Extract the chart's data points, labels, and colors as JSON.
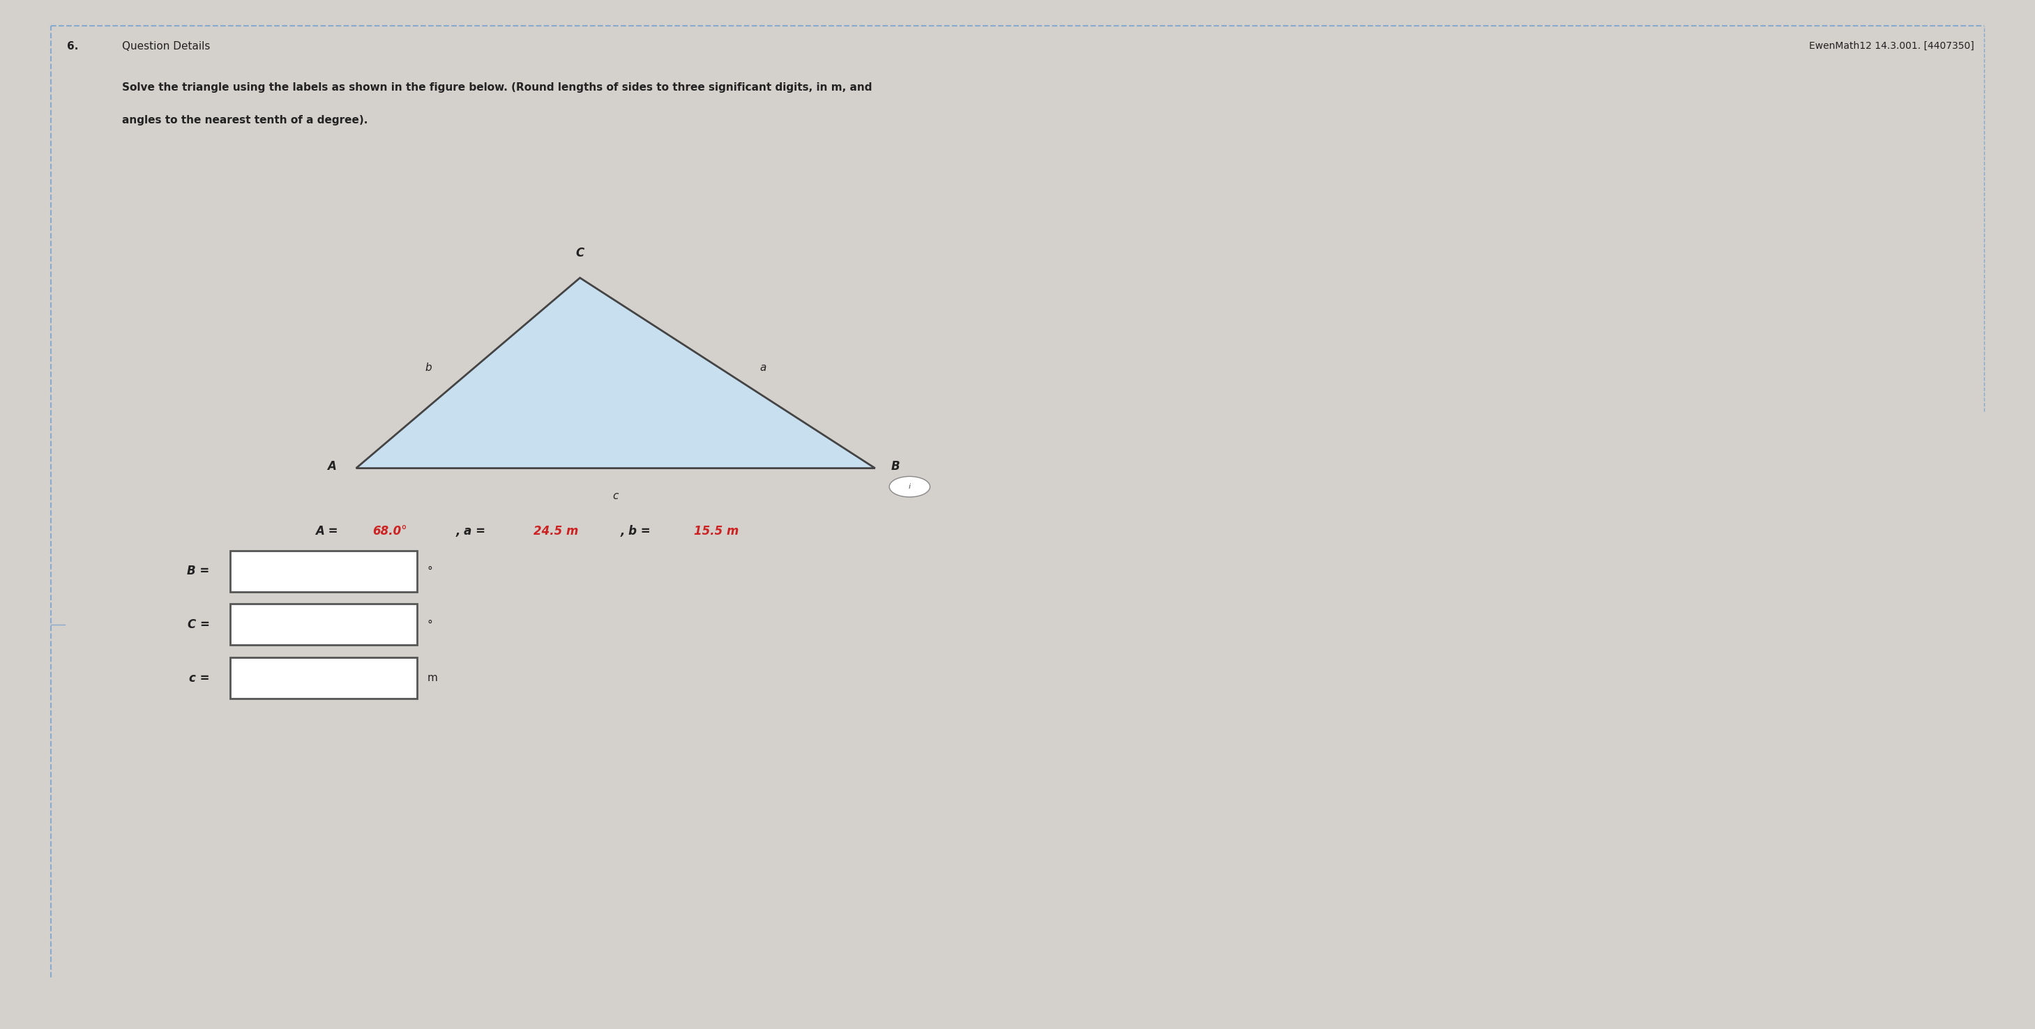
{
  "bg_color": "#d4d0cc",
  "question_number": "6.",
  "question_details_label": "Question Details",
  "header_right": "EwenMath12 14.3.001. [4407350]",
  "problem_text_line1": "Solve the triangle using the labels as shown in the figure below. (Round lengths of sides to three significant digits, in m, and",
  "problem_text_line2": "angles to the nearest tenth of a degree).",
  "triangle_fill": "#c8dff0",
  "triangle_edge": "#444444",
  "vertex_A": [
    0.175,
    0.545
  ],
  "vertex_B": [
    0.43,
    0.545
  ],
  "vertex_C": [
    0.285,
    0.73
  ],
  "label_A": "A",
  "label_B": "B",
  "label_C": "C",
  "label_a": "a",
  "label_b": "b",
  "label_c": "c",
  "input_box_color": "#ffffff",
  "input_box_border": "#555555",
  "unit_deg": "°",
  "unit_m": "m",
  "font_color_main": "#222222",
  "font_color_given": "#cc2222",
  "top_border_color": "#88aacc",
  "left_border_color": "#88aacc",
  "given_A_black": "A = ",
  "given_A_red": "68.0°",
  "given_a_black": ", a = ",
  "given_a_red": "24.5 m",
  "given_b_black": ", b = ",
  "given_b_red": "15.5 m"
}
